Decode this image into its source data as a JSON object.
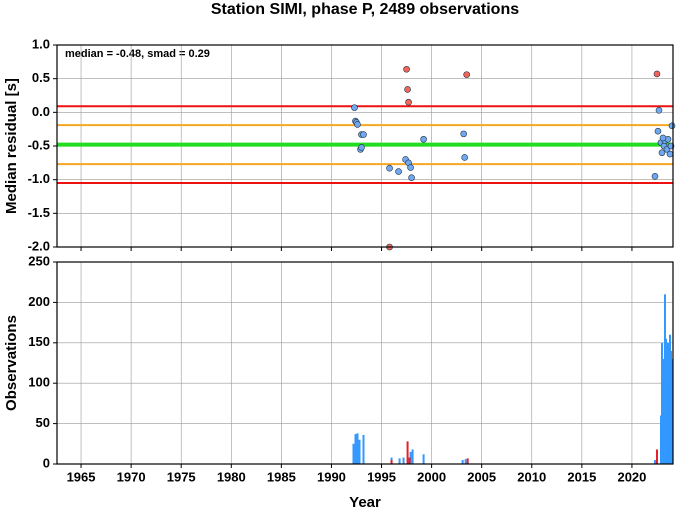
{
  "chart_data": [
    {
      "type": "scatter",
      "title": "Station SIMI, phase P, 2489 observations",
      "ylabel": "Median residual [s]",
      "annotation": "median = -0.48, smad = 0.29",
      "xlim": [
        1962.6,
        2024.1
      ],
      "xticks": [
        1965,
        1970,
        1975,
        1980,
        1985,
        1990,
        1995,
        2000,
        2005,
        2010,
        2015,
        2020
      ],
      "ylim": [
        -2.0,
        1.0
      ],
      "yticks": [
        {
          "value": -2.0,
          "label": "-2.0"
        },
        {
          "value": -1.5,
          "label": "-1.5"
        },
        {
          "value": -1.0,
          "label": "-1.0"
        },
        {
          "value": -0.5,
          "label": "-0.5"
        },
        {
          "value": 0.0,
          "label": "0.0"
        },
        {
          "value": 0.5,
          "label": "0.5"
        },
        {
          "value": 1.0,
          "label": "1.0"
        }
      ],
      "grid": true,
      "hlines": [
        {
          "value": 0.09,
          "color": "#ee1111"
        },
        {
          "value": -1.05,
          "color": "#ee1111"
        },
        {
          "value": -0.19,
          "color": "#f5a623"
        },
        {
          "value": -0.77,
          "color": "#f5a623"
        },
        {
          "value": -0.48,
          "color": "#22dd22"
        }
      ],
      "series": [
        {
          "color": "#6fa8f0",
          "x": [
            1992.3,
            1992.4,
            1992.5,
            1992.6,
            1993.0,
            1993.2,
            1992.9,
            1993.0,
            1995.8,
            1996.7,
            1997.4,
            1997.7,
            1997.9,
            1998.0,
            1999.2,
            2003.2,
            2003.3,
            2022.3,
            2022.7,
            2022.6,
            2022.9,
            2023.0,
            2023.2,
            2023.3,
            2023.5,
            2023.6,
            2023.8,
            2023.9,
            2024.0,
            2023.1
          ],
          "values": [
            0.07,
            -0.13,
            -0.15,
            -0.18,
            -0.33,
            -0.33,
            -0.55,
            -0.52,
            -0.83,
            -0.88,
            -0.7,
            -0.75,
            -0.82,
            -0.97,
            -0.4,
            -0.32,
            -0.67,
            -0.95,
            0.03,
            -0.28,
            -0.45,
            -0.6,
            -0.5,
            -0.42,
            -0.55,
            -0.4,
            -0.62,
            -0.5,
            -0.2,
            -0.38
          ]
        },
        {
          "color": "#f0675a",
          "x": [
            1995.8,
            1997.5,
            1997.6,
            1997.7,
            2003.5,
            2022.5
          ],
          "values": [
            -2.0,
            0.64,
            0.34,
            0.15,
            0.56,
            0.57
          ]
        }
      ]
    },
    {
      "type": "bar",
      "xlabel": "Year",
      "ylabel": "Observations",
      "xlim": [
        1962.6,
        2024.1
      ],
      "xticks": [
        1965,
        1970,
        1975,
        1980,
        1985,
        1990,
        1995,
        2000,
        2005,
        2010,
        2015,
        2020
      ],
      "ylim": [
        0,
        250
      ],
      "yticks": [
        0,
        50,
        100,
        150,
        200,
        250
      ],
      "grid": true,
      "series": [
        {
          "color": "#3399ff",
          "x": [
            1992.2,
            1992.4,
            1992.6,
            1992.8,
            1993.2,
            1996.0,
            1996.8,
            1997.2,
            1997.9,
            1998.1,
            1999.2,
            2003.1,
            2003.4,
            2022.3,
            2022.9,
            2023.0,
            2023.1,
            2023.2,
            2023.3,
            2023.4,
            2023.5,
            2023.6,
            2023.7,
            2023.8,
            2023.9,
            2024.0
          ],
          "values": [
            25,
            37,
            38,
            30,
            36,
            8,
            7,
            8,
            15,
            18,
            12,
            5,
            6,
            5,
            60,
            150,
            100,
            130,
            210,
            155,
            120,
            150,
            100,
            160,
            140,
            130
          ]
        },
        {
          "color": "#e0202a",
          "x": [
            1996.0,
            1997.6,
            1997.8,
            2003.6,
            2022.5
          ],
          "values": [
            5,
            28,
            8,
            7,
            18
          ]
        }
      ]
    }
  ]
}
